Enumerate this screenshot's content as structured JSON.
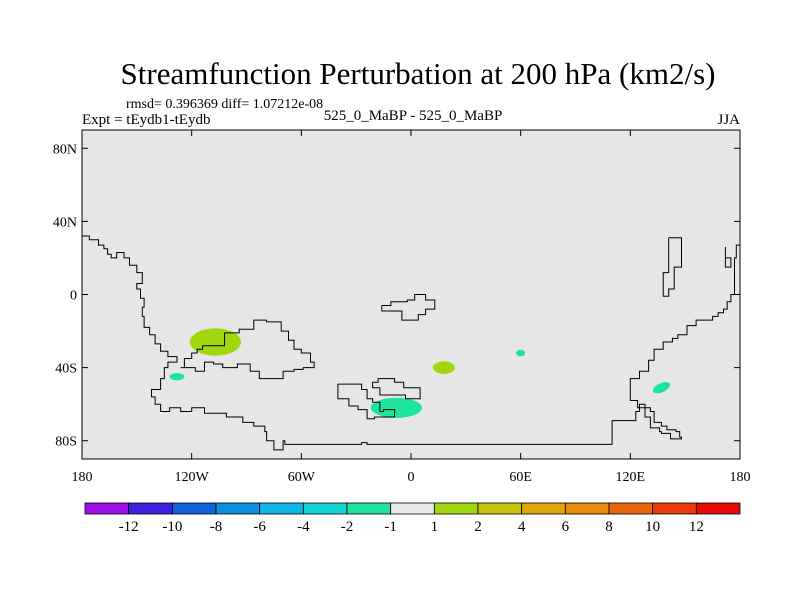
{
  "chart_data": {
    "type": "contour_map",
    "title": "Streamfunction Perturbation at 200 hPa (km2/s)",
    "stats_text": "rmsd= 0.396369 diff= 1.07212e-08",
    "left_label": "Expt = tEydb1-tEydb",
    "center_label": "525_0_MaBP - 525_0_MaBP",
    "right_label": "JJA",
    "xlim": [
      -180,
      180
    ],
    "ylim": [
      -90,
      90
    ],
    "x_ticks": [
      {
        "value": -180,
        "label": "180"
      },
      {
        "value": -120,
        "label": "120W"
      },
      {
        "value": -60,
        "label": "60W"
      },
      {
        "value": 0,
        "label": "0"
      },
      {
        "value": 60,
        "label": "60E"
      },
      {
        "value": 120,
        "label": "120E"
      },
      {
        "value": 180,
        "label": "180"
      }
    ],
    "y_ticks": [
      {
        "value": 80,
        "label": "80N"
      },
      {
        "value": 40,
        "label": "40N"
      },
      {
        "value": 0,
        "label": "0"
      },
      {
        "value": -40,
        "label": "40S"
      },
      {
        "value": -80,
        "label": "80S"
      }
    ],
    "background_color": "#e6e6e6",
    "coastlines": [
      [
        [
          -180,
          32
        ],
        [
          -176,
          32
        ],
        [
          -176,
          30
        ],
        [
          -171,
          30
        ],
        [
          -171,
          27
        ],
        [
          -168,
          27
        ],
        [
          -168,
          25
        ],
        [
          -166,
          25
        ],
        [
          -166,
          22
        ],
        [
          -164,
          22
        ],
        [
          -164,
          20
        ],
        [
          -161,
          20
        ],
        [
          -161,
          23
        ],
        [
          -157,
          23
        ],
        [
          -157,
          20
        ],
        [
          -154,
          20
        ],
        [
          -154,
          16
        ],
        [
          -150,
          16
        ],
        [
          -150,
          12
        ],
        [
          -147,
          12
        ],
        [
          -147,
          6
        ],
        [
          -150,
          6
        ],
        [
          -150,
          3
        ],
        [
          -148,
          3
        ],
        [
          -148,
          -2
        ],
        [
          -146,
          -2
        ],
        [
          -146,
          -7
        ],
        [
          -147,
          -7
        ],
        [
          -147,
          -12
        ],
        [
          -146,
          -12
        ],
        [
          -146,
          -18
        ],
        [
          -143,
          -18
        ],
        [
          -143,
          -22
        ],
        [
          -140,
          -22
        ],
        [
          -140,
          -27
        ],
        [
          -137,
          -27
        ],
        [
          -137,
          -31
        ],
        [
          -133,
          -31
        ],
        [
          -133,
          -34
        ],
        [
          -128,
          -34
        ],
        [
          -128,
          -37
        ],
        [
          -133,
          -37
        ],
        [
          -133,
          -40
        ],
        [
          -135,
          -40
        ],
        [
          -135,
          -46
        ],
        [
          -137,
          -46
        ],
        [
          -137,
          -52
        ],
        [
          -142,
          -52
        ],
        [
          -142,
          -56
        ],
        [
          -140,
          -56
        ],
        [
          -140,
          -60
        ],
        [
          -137,
          -60
        ],
        [
          -137,
          -64
        ],
        [
          -132,
          -64
        ],
        [
          -132,
          -62
        ],
        [
          -126,
          -62
        ],
        [
          -126,
          -64
        ],
        [
          -120,
          -64
        ],
        [
          -120,
          -62
        ],
        [
          -113,
          -62
        ],
        [
          -113,
          -65
        ],
        [
          -101,
          -65
        ],
        [
          -101,
          -67
        ],
        [
          -92,
          -67
        ],
        [
          -92,
          -70
        ],
        [
          -86,
          -70
        ],
        [
          -86,
          -72
        ],
        [
          -80,
          -72
        ],
        [
          -80,
          -75
        ],
        [
          -79,
          -75
        ],
        [
          -79,
          -80
        ],
        [
          -75,
          -80
        ],
        [
          -75,
          -85
        ],
        [
          -70,
          -85
        ],
        [
          -70,
          -80
        ],
        [
          -69,
          -80
        ],
        [
          -69,
          -82
        ],
        [
          -27,
          -82
        ],
        [
          -27,
          -81
        ],
        [
          -24,
          -81
        ],
        [
          -24,
          -82
        ],
        [
          110,
          -82
        ],
        [
          110,
          -69
        ],
        [
          123,
          -69
        ],
        [
          123,
          -64
        ],
        [
          125,
          -64
        ],
        [
          125,
          -60
        ],
        [
          128,
          -60
        ],
        [
          128,
          -62
        ],
        [
          131,
          -62
        ],
        [
          131,
          -64
        ],
        [
          133,
          -64
        ],
        [
          133,
          -70
        ],
        [
          137,
          -70
        ],
        [
          137,
          -72
        ],
        [
          140,
          -72
        ],
        [
          140,
          -74
        ],
        [
          145,
          -74
        ],
        [
          145,
          -75
        ],
        [
          147,
          -75
        ],
        [
          147,
          -78
        ],
        [
          148,
          -78
        ],
        [
          148,
          -79
        ],
        [
          142,
          -79
        ],
        [
          142,
          -76
        ],
        [
          137,
          -76
        ],
        [
          137,
          -75
        ],
        [
          136,
          -75
        ],
        [
          136,
          -73
        ],
        [
          131,
          -73
        ],
        [
          131,
          -67
        ],
        [
          128,
          -67
        ],
        [
          128,
          -62
        ],
        [
          124,
          -62
        ],
        [
          124,
          -58
        ],
        [
          120,
          -58
        ],
        [
          120,
          -46
        ],
        [
          125,
          -46
        ],
        [
          125,
          -42
        ],
        [
          130,
          -42
        ],
        [
          130,
          -36
        ],
        [
          133,
          -36
        ],
        [
          133,
          -30
        ],
        [
          138,
          -30
        ],
        [
          138,
          -26
        ],
        [
          143,
          -26
        ],
        [
          143,
          -24
        ],
        [
          146,
          -24
        ],
        [
          146,
          -22
        ],
        [
          151,
          -22
        ],
        [
          151,
          -17
        ],
        [
          156,
          -17
        ],
        [
          156,
          -14
        ],
        [
          165,
          -14
        ],
        [
          165,
          -12
        ],
        [
          168,
          -12
        ],
        [
          168,
          -10
        ],
        [
          171,
          -10
        ],
        [
          171,
          -8
        ],
        [
          173,
          -8
        ],
        [
          173,
          -4
        ],
        [
          175,
          -4
        ],
        [
          175,
          0
        ],
        [
          177,
          0
        ],
        [
          177,
          20
        ],
        [
          178,
          20
        ],
        [
          178,
          27
        ],
        [
          180,
          27
        ]
      ],
      [
        [
          -126,
          -40
        ],
        [
          -124,
          -40
        ],
        [
          -124,
          -35
        ],
        [
          -120,
          -35
        ],
        [
          -120,
          -32
        ],
        [
          -117,
          -32
        ],
        [
          -117,
          -30
        ],
        [
          -114,
          -30
        ],
        [
          -114,
          -28
        ],
        [
          -102,
          -28
        ],
        [
          -102,
          -21
        ],
        [
          -94,
          -21
        ],
        [
          -94,
          -19
        ],
        [
          -86,
          -19
        ],
        [
          -86,
          -14
        ],
        [
          -79,
          -14
        ],
        [
          -79,
          -15
        ],
        [
          -71,
          -15
        ],
        [
          -71,
          -20
        ],
        [
          -67,
          -20
        ],
        [
          -67,
          -25
        ],
        [
          -64,
          -25
        ],
        [
          -64,
          -30
        ],
        [
          -60,
          -30
        ],
        [
          -60,
          -32
        ],
        [
          -55,
          -32
        ],
        [
          -55,
          -37
        ],
        [
          -53,
          -37
        ],
        [
          -53,
          -40
        ],
        [
          -59,
          -40
        ],
        [
          -59,
          -41
        ],
        [
          -64,
          -41
        ],
        [
          -64,
          -42
        ],
        [
          -70,
          -42
        ],
        [
          -70,
          -46
        ],
        [
          -83,
          -46
        ],
        [
          -83,
          -42
        ],
        [
          -88,
          -42
        ],
        [
          -88,
          -38
        ],
        [
          -95,
          -38
        ],
        [
          -95,
          -40
        ],
        [
          -103,
          -40
        ],
        [
          -103,
          -38
        ],
        [
          -108,
          -38
        ],
        [
          -108,
          -37
        ],
        [
          -113,
          -37
        ],
        [
          -113,
          -42
        ],
        [
          -118,
          -42
        ],
        [
          -118,
          -40
        ],
        [
          -126,
          -40
        ]
      ],
      [
        [
          -17,
          -51
        ],
        [
          -21,
          -51
        ],
        [
          -21,
          -48
        ],
        [
          -18,
          -48
        ],
        [
          -18,
          -46
        ],
        [
          -9,
          -46
        ],
        [
          -9,
          -48
        ],
        [
          -4,
          -48
        ],
        [
          -4,
          -51
        ],
        [
          5,
          -51
        ],
        [
          5,
          -57
        ],
        [
          -3,
          -57
        ],
        [
          -3,
          -55
        ],
        [
          -17,
          -55
        ],
        [
          -17,
          -51
        ]
      ],
      [
        [
          -40,
          -49
        ],
        [
          -27,
          -49
        ],
        [
          -27,
          -52
        ],
        [
          -24,
          -52
        ],
        [
          -24,
          -57
        ],
        [
          -21,
          -57
        ],
        [
          -21,
          -59
        ],
        [
          -17,
          -59
        ],
        [
          -17,
          -64
        ],
        [
          -15,
          -64
        ],
        [
          -15,
          -63
        ],
        [
          -9,
          -63
        ],
        [
          -9,
          -67
        ],
        [
          -20,
          -67
        ],
        [
          -20,
          -68
        ],
        [
          -24,
          -68
        ],
        [
          -24,
          -63
        ],
        [
          -29,
          -63
        ],
        [
          -29,
          -61
        ],
        [
          -34,
          -61
        ],
        [
          -34,
          -57
        ],
        [
          -40,
          -57
        ],
        [
          -40,
          -49
        ]
      ],
      [
        [
          -16,
          -6
        ],
        [
          -16,
          -9
        ],
        [
          -5,
          -9
        ],
        [
          -5,
          -14
        ],
        [
          4,
          -14
        ],
        [
          4,
          -11
        ],
        [
          8,
          -11
        ],
        [
          8,
          -8
        ],
        [
          13,
          -8
        ],
        [
          13,
          -3
        ],
        [
          8,
          -3
        ],
        [
          8,
          0
        ],
        [
          2,
          0
        ],
        [
          2,
          -3
        ],
        [
          -2,
          -3
        ],
        [
          -2,
          -4
        ],
        [
          -11,
          -4
        ],
        [
          -11,
          -6
        ],
        [
          -16,
          -6
        ]
      ],
      [
        [
          141,
          31
        ],
        [
          148,
          31
        ],
        [
          148,
          15
        ],
        [
          144,
          15
        ],
        [
          144,
          3
        ],
        [
          141,
          3
        ],
        [
          141,
          -1
        ],
        [
          138,
          -1
        ],
        [
          138,
          12
        ],
        [
          141,
          12
        ],
        [
          141,
          31
        ]
      ],
      [
        [
          172,
          26
        ],
        [
          172,
          15
        ],
        [
          175,
          15
        ],
        [
          175,
          20
        ],
        [
          172,
          20
        ]
      ]
    ],
    "anomalies": [
      {
        "lon": -107,
        "lat": -26,
        "rx": 14,
        "ry": 7.5,
        "value": 2,
        "color": "#a0d70f"
      },
      {
        "lon": -128,
        "lat": -45,
        "rx": 4,
        "ry": 2,
        "value": -1,
        "color": "#1ee39c"
      },
      {
        "lon": -8,
        "lat": -62,
        "rx": 14,
        "ry": 5.5,
        "value": -1,
        "color": "#1ee39c"
      },
      {
        "lon": 18,
        "lat": -40,
        "rx": 6,
        "ry": 3.5,
        "value": 2,
        "color": "#a0d70f"
      },
      {
        "lon": 60,
        "lat": -32,
        "rx": 2.5,
        "ry": 1.8,
        "value": -1,
        "color": "#1ee39c"
      },
      {
        "lon": 137,
        "lat": -51,
        "rx": 5,
        "ry": 2.5,
        "value": -1,
        "color": "#1ee39c",
        "rotate": -25
      }
    ],
    "colorbar": {
      "colors": [
        "#9e0fe8",
        "#3d23de",
        "#1461dc",
        "#0a8de2",
        "#10b6e8",
        "#15d3d3",
        "#1ee39c",
        "#e8e8e8",
        "#a0d70f",
        "#c8c40a",
        "#e0a60a",
        "#e88a0a",
        "#e8660a",
        "#e83a0a",
        "#e80a0a"
      ],
      "labels": [
        "-12",
        "-10",
        "-8",
        "-6",
        "-4",
        "-2",
        "-1",
        "1",
        "2",
        "4",
        "6",
        "8",
        "10",
        "12"
      ]
    }
  }
}
